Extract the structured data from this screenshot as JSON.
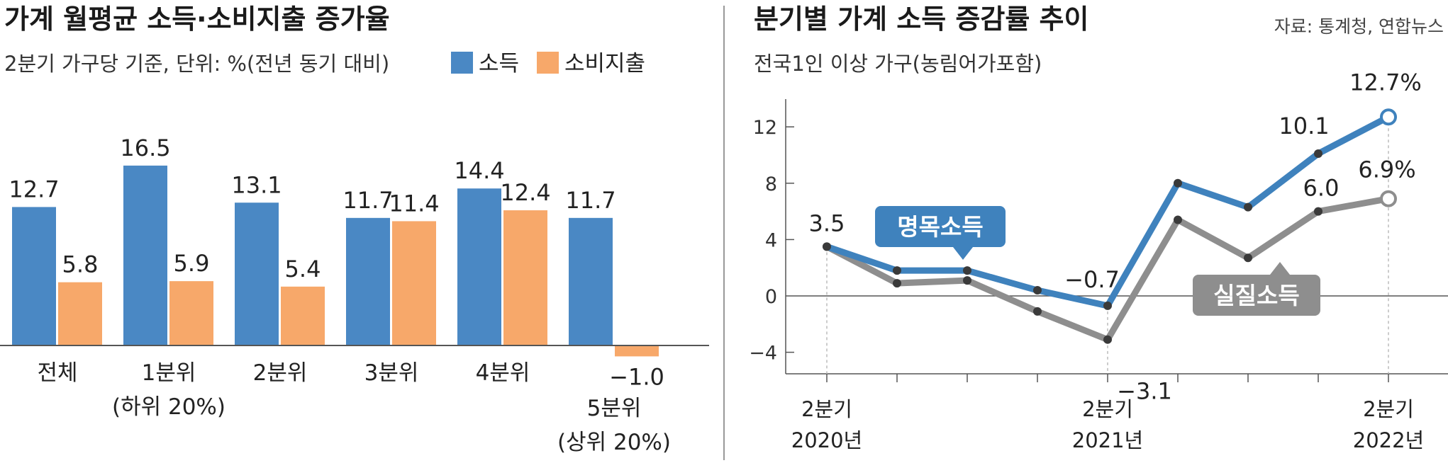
{
  "left_panel": {
    "title": "가계 월평균 소득·소비지출 증가율",
    "subtitle": "2분기 가구당 기준, 단위: %(전년 동기 대비)"
  },
  "right_panel": {
    "title": "분기별 가계 소득 증감률 추이",
    "subtitle": "전국1인 이상 가구(농림어가포함)",
    "source": "자료: 통계청, 연합뉴스"
  },
  "colors": {
    "income_bar": "#4a88c4",
    "spending_bar": "#f7a86a",
    "nominal_line": "#3f82bd",
    "real_line": "#8e8e8e",
    "axis": "#555555",
    "grid": "#bbbbbb"
  },
  "chart_data": [
    {
      "type": "bar",
      "title": "가계 월평균 소득·소비지출 증가율",
      "subtitle": "2분기 가구당 기준, 단위: %(전년 동기 대비)",
      "categories": [
        [
          "전체"
        ],
        [
          "1분위",
          "(하위 20%)"
        ],
        [
          "2분위"
        ],
        [
          "3분위"
        ],
        [
          "4분위"
        ],
        [
          "5분위",
          "(상위 20%)"
        ]
      ],
      "series": [
        {
          "name": "소득",
          "values": [
            12.7,
            16.5,
            13.1,
            11.7,
            14.4,
            11.7
          ]
        },
        {
          "name": "소비지출",
          "values": [
            5.8,
            5.9,
            5.4,
            11.4,
            12.4,
            -1.0
          ]
        }
      ],
      "value_labels": {
        "소득": [
          "12.7",
          "16.5",
          "13.1",
          "11.7",
          "14.4",
          "11.7"
        ],
        "소비지출": [
          "5.8",
          "5.9",
          "5.4",
          "11.4",
          "12.4",
          "−1.0"
        ]
      },
      "legend_position": "top-right",
      "ylim": [
        -1.2,
        17
      ]
    },
    {
      "type": "line",
      "title": "분기별 가계 소득 증감률 추이",
      "subtitle": "전국1인 이상 가구(농림어가포함)",
      "x": [
        "2020Q2",
        "2020Q3",
        "2020Q4",
        "2021Q1",
        "2021Q2",
        "2021Q3",
        "2021Q4",
        "2022Q1",
        "2022Q2"
      ],
      "xticks": [
        {
          "index": 0,
          "label": [
            "2분기",
            "2020년"
          ]
        },
        {
          "index": 4,
          "label": [
            "2분기",
            "2021년"
          ]
        },
        {
          "index": 8,
          "label": [
            "2분기",
            "2022년"
          ]
        }
      ],
      "ylim": [
        -6,
        14
      ],
      "yticks": [
        -4,
        0,
        4,
        8,
        12
      ],
      "ytick_labels": [
        "−4",
        "0",
        "4",
        "8",
        "12"
      ],
      "series": [
        {
          "name": "명목소득",
          "values": [
            3.5,
            1.8,
            1.8,
            0.4,
            -0.7,
            8.0,
            6.3,
            10.1,
            12.7
          ],
          "labels": [
            {
              "index": 0,
              "text": "3.5"
            },
            {
              "index": 4,
              "text": "−0.7"
            },
            {
              "index": 7,
              "text": "10.1"
            },
            {
              "index": 8,
              "text": "12.7%"
            }
          ]
        },
        {
          "name": "실질소득",
          "values": [
            3.5,
            0.9,
            1.1,
            -1.1,
            -3.1,
            5.4,
            2.7,
            6.0,
            6.9
          ],
          "labels": [
            {
              "index": 4,
              "text": "−3.1"
            },
            {
              "index": 7,
              "text": "6.0"
            },
            {
              "index": 8,
              "text": "6.9%"
            }
          ]
        }
      ]
    }
  ]
}
